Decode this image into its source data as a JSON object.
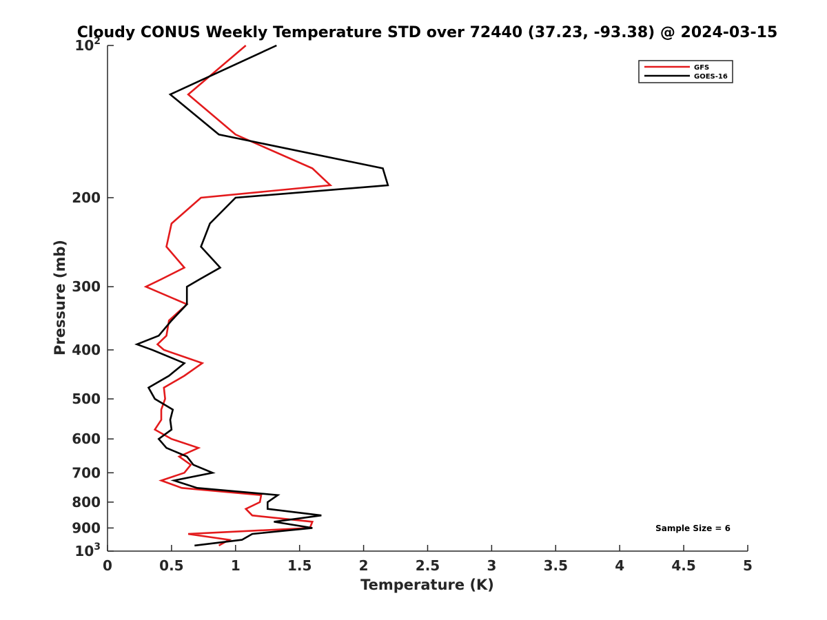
{
  "chart_data": {
    "type": "line",
    "title": "Cloudy CONUS Weekly Temperature STD over 72440 (37.23, -93.38) @ 2024-03-15",
    "xlabel": "Temperature (K)",
    "ylabel": "Pressure (mb)",
    "xlim": [
      0,
      5
    ],
    "ylim": [
      100,
      1000
    ],
    "y_scale": "log",
    "y_reversed": true,
    "grid": false,
    "legend_position": "top-right",
    "x_ticks": [
      {
        "value": 0,
        "label": "0"
      },
      {
        "value": 0.5,
        "label": "0.5"
      },
      {
        "value": 1,
        "label": "1"
      },
      {
        "value": 1.5,
        "label": "1.5"
      },
      {
        "value": 2,
        "label": "2"
      },
      {
        "value": 2.5,
        "label": "2.5"
      },
      {
        "value": 3,
        "label": "3"
      },
      {
        "value": 3.5,
        "label": "3.5"
      },
      {
        "value": 4,
        "label": "4"
      },
      {
        "value": 4.5,
        "label": "4.5"
      },
      {
        "value": 5,
        "label": "5"
      }
    ],
    "y_ticks": [
      {
        "value": 100,
        "base": "10",
        "exp": "2"
      },
      {
        "value": 200,
        "base": "200",
        "exp": ""
      },
      {
        "value": 300,
        "base": "300",
        "exp": ""
      },
      {
        "value": 400,
        "base": "400",
        "exp": ""
      },
      {
        "value": 500,
        "base": "500",
        "exp": ""
      },
      {
        "value": 600,
        "base": "600",
        "exp": ""
      },
      {
        "value": 700,
        "base": "700",
        "exp": ""
      },
      {
        "value": 800,
        "base": "800",
        "exp": ""
      },
      {
        "value": 900,
        "base": "900",
        "exp": ""
      },
      {
        "value": 1000,
        "base": "10",
        "exp": "3"
      }
    ],
    "series": [
      {
        "name": "GFS",
        "color": "#e31a1c",
        "points": [
          [
            1.08,
            100
          ],
          [
            0.63,
            125
          ],
          [
            1.0,
            150
          ],
          [
            1.6,
            175
          ],
          [
            1.74,
            189
          ],
          [
            0.73,
            200
          ],
          [
            0.5,
            225
          ],
          [
            0.46,
            250
          ],
          [
            0.6,
            275
          ],
          [
            0.42,
            290
          ],
          [
            0.3,
            300
          ],
          [
            0.62,
            325
          ],
          [
            0.48,
            350
          ],
          [
            0.46,
            375
          ],
          [
            0.39,
            390
          ],
          [
            0.44,
            400
          ],
          [
            0.74,
            425
          ],
          [
            0.6,
            450
          ],
          [
            0.44,
            475
          ],
          [
            0.45,
            500
          ],
          [
            0.42,
            525
          ],
          [
            0.42,
            550
          ],
          [
            0.37,
            575
          ],
          [
            0.5,
            600
          ],
          [
            0.71,
            625
          ],
          [
            0.56,
            650
          ],
          [
            0.65,
            675
          ],
          [
            0.6,
            700
          ],
          [
            0.42,
            725
          ],
          [
            0.58,
            750
          ],
          [
            1.2,
            775
          ],
          [
            1.19,
            800
          ],
          [
            1.08,
            825
          ],
          [
            1.13,
            850
          ],
          [
            1.6,
            875
          ],
          [
            1.58,
            900
          ],
          [
            0.63,
            925
          ],
          [
            0.95,
            950
          ],
          [
            0.87,
            975
          ]
        ]
      },
      {
        "name": "GOES-16",
        "color": "#000000",
        "points": [
          [
            1.32,
            100
          ],
          [
            0.49,
            125
          ],
          [
            0.87,
            150
          ],
          [
            2.15,
            175
          ],
          [
            2.19,
            189
          ],
          [
            1.0,
            200
          ],
          [
            0.8,
            225
          ],
          [
            0.73,
            250
          ],
          [
            0.88,
            275
          ],
          [
            0.72,
            290
          ],
          [
            0.62,
            300
          ],
          [
            0.62,
            325
          ],
          [
            0.5,
            350
          ],
          [
            0.4,
            375
          ],
          [
            0.23,
            390
          ],
          [
            0.35,
            400
          ],
          [
            0.6,
            425
          ],
          [
            0.48,
            450
          ],
          [
            0.32,
            475
          ],
          [
            0.37,
            500
          ],
          [
            0.51,
            525
          ],
          [
            0.49,
            550
          ],
          [
            0.5,
            575
          ],
          [
            0.4,
            600
          ],
          [
            0.46,
            625
          ],
          [
            0.62,
            650
          ],
          [
            0.67,
            675
          ],
          [
            0.82,
            700
          ],
          [
            0.52,
            725
          ],
          [
            0.7,
            750
          ],
          [
            1.33,
            775
          ],
          [
            1.25,
            800
          ],
          [
            1.25,
            825
          ],
          [
            1.67,
            850
          ],
          [
            1.3,
            875
          ],
          [
            1.6,
            900
          ],
          [
            1.13,
            925
          ],
          [
            1.05,
            950
          ],
          [
            0.68,
            975
          ]
        ]
      }
    ],
    "annotation": "Sample Size = 6"
  }
}
